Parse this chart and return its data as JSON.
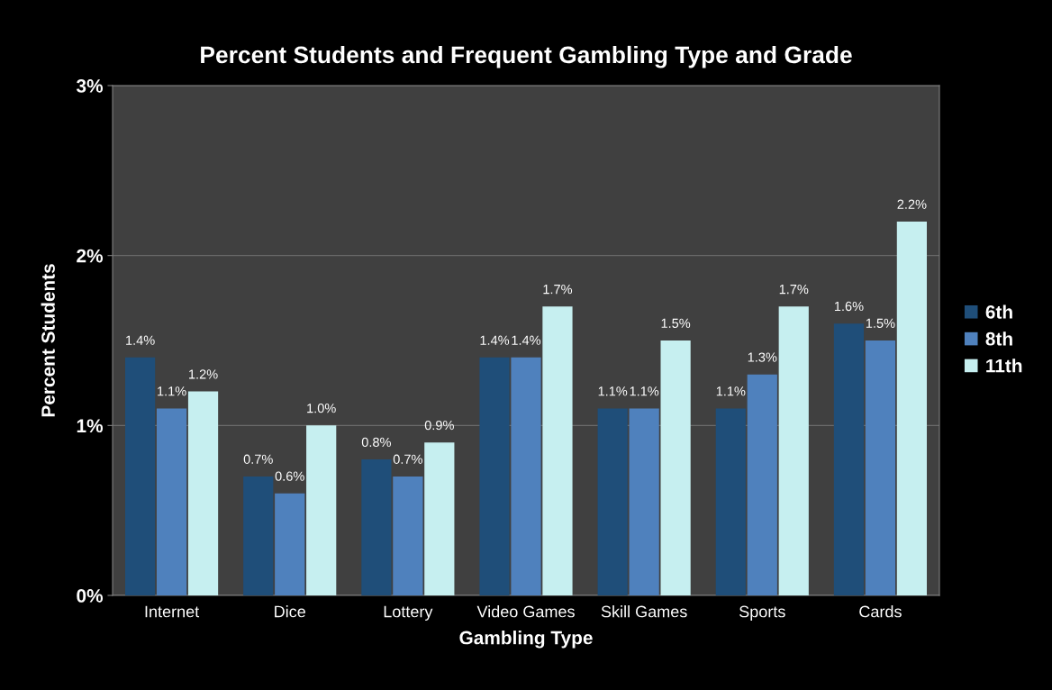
{
  "chart_data": {
    "type": "bar",
    "title": "Percent Students and Frequent Gambling Type and Grade",
    "xlabel": "Gambling Type",
    "ylabel": "Percent Students",
    "categories": [
      "Internet",
      "Dice",
      "Lottery",
      "Video Games",
      "Skill Games",
      "Sports",
      "Cards"
    ],
    "series": [
      {
        "name": "6th",
        "color": "#1f4e79",
        "values": [
          1.4,
          0.7,
          0.8,
          1.4,
          1.1,
          1.1,
          1.6
        ],
        "value_labels": [
          "1.4%",
          "0.7%",
          "0.8%",
          "1.4%",
          "1.1%",
          "1.1%",
          "1.6%"
        ]
      },
      {
        "name": "8th",
        "color": "#4f81bd",
        "values": [
          1.1,
          0.6,
          0.7,
          1.4,
          1.1,
          1.3,
          1.5
        ],
        "value_labels": [
          "1.1%",
          "0.6%",
          "0.7%",
          "1.4%",
          "1.1%",
          "1.3%",
          "1.5%"
        ]
      },
      {
        "name": "11th",
        "color": "#c6eff0",
        "values": [
          1.2,
          1.0,
          0.9,
          1.7,
          1.5,
          1.7,
          2.2
        ],
        "value_labels": [
          "1.2%",
          "1.0%",
          "0.9%",
          "1.7%",
          "1.5%",
          "1.7%",
          "2.2%"
        ]
      }
    ],
    "ylim": [
      0,
      3
    ],
    "yticks": [
      {
        "value": 0,
        "label": "0%"
      },
      {
        "value": 1,
        "label": "1%"
      },
      {
        "value": 2,
        "label": "2%"
      },
      {
        "value": 3,
        "label": "3%"
      }
    ],
    "grid": "y",
    "legend": "right"
  }
}
